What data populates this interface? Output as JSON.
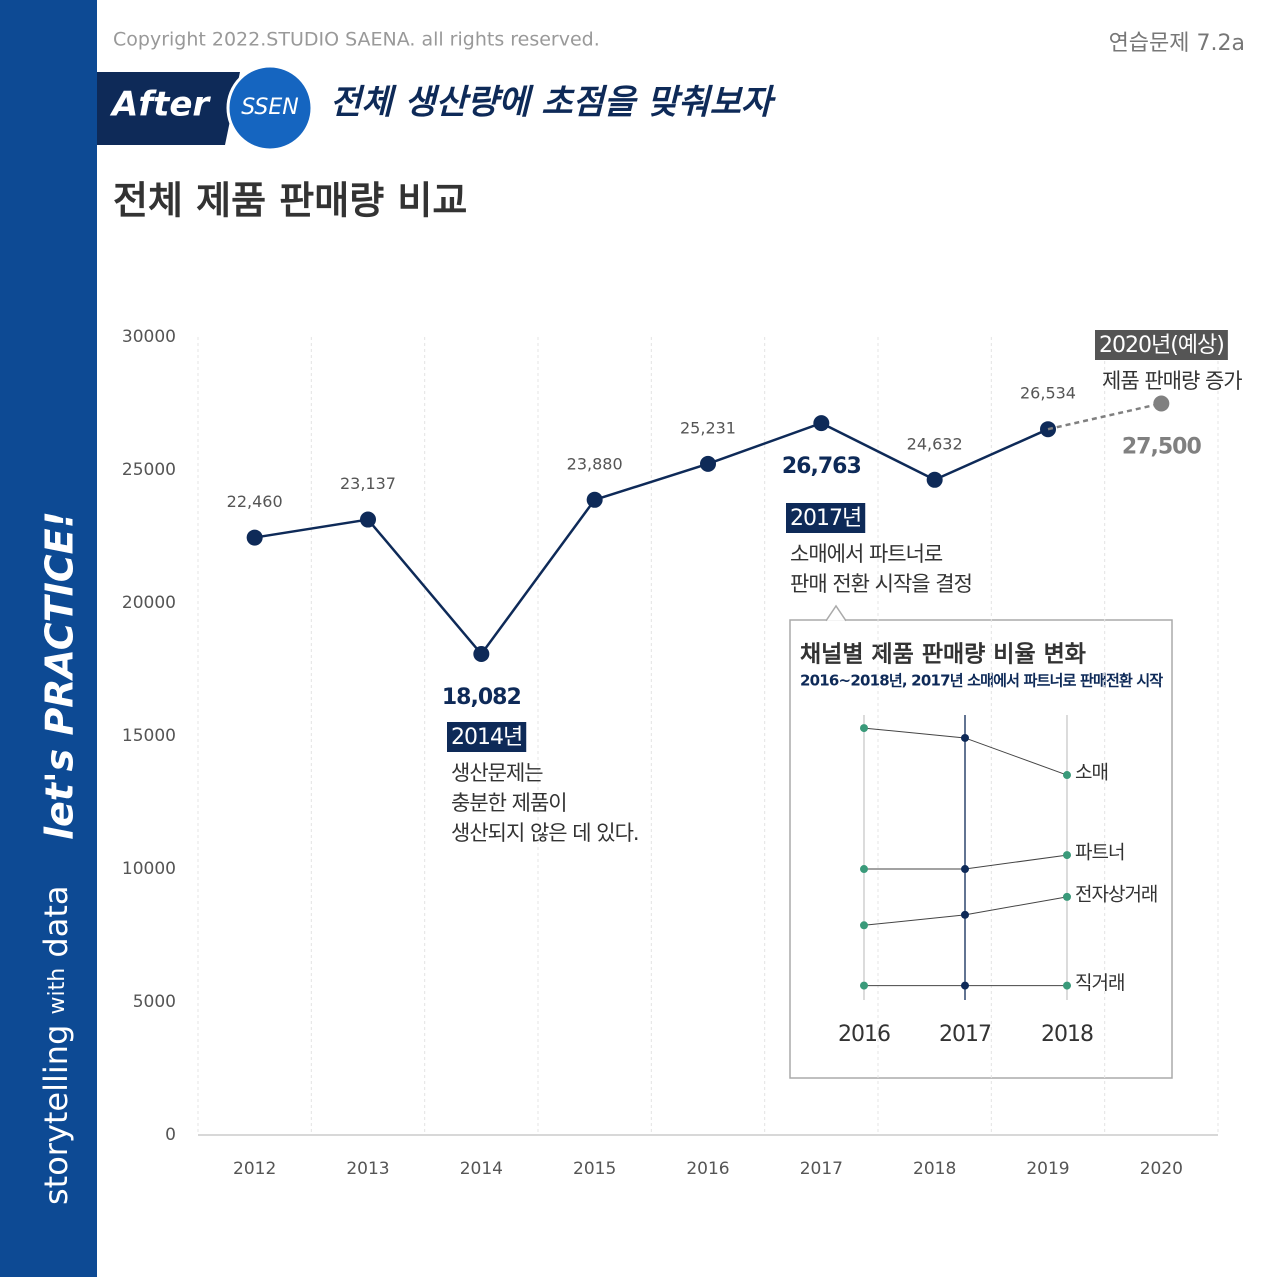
{
  "header": {
    "copyright": "Copyright 2022.STUDIO SAENA. all rights reserved.",
    "exercise": "연습문제 7.2a",
    "badge_left": "After",
    "badge_circle": "SSEN",
    "headline": "전체 생산량에 초점을 맞춰보자"
  },
  "sidebar": {
    "brand": [
      "storytelling",
      "with",
      "data"
    ],
    "slogan": "let's PRACTICE!"
  },
  "chart_data": [
    {
      "type": "line",
      "title": "전체 제품 판매량 비교",
      "categories": [
        "2012",
        "2013",
        "2014",
        "2015",
        "2016",
        "2017",
        "2018",
        "2019",
        "2020"
      ],
      "series": [
        {
          "name": null,
          "color": "#0e2a58",
          "values": [
            22460,
            23137,
            18082,
            23880,
            25231,
            26763,
            24632,
            26534,
            null
          ],
          "value_labels": [
            "22,460",
            "23,137",
            "18,082",
            "23,880",
            "25,231",
            "26,763",
            "24,632",
            "26,534",
            null
          ],
          "highlight": [
            2,
            5
          ]
        },
        {
          "name": null,
          "color": "#808080",
          "dashed": true,
          "values": [
            null,
            null,
            null,
            null,
            null,
            null,
            null,
            null,
            27500
          ],
          "value_labels": [
            null,
            null,
            null,
            null,
            null,
            null,
            null,
            null,
            "27,500"
          ],
          "highlight": [
            8
          ]
        }
      ],
      "ylim": [
        0,
        30000
      ],
      "yticks": [
        0,
        5000,
        10000,
        15000,
        20000,
        25000,
        30000
      ],
      "grid": "vertical",
      "annotations": [
        {
          "title": "2014년",
          "text": [
            "생산문제는",
            "충분한 제품이",
            "생산되지 않은 데 있다."
          ],
          "color": "#0e2a58"
        },
        {
          "title": "2017년",
          "text": [
            "소매에서 파트너로",
            "판매 전환 시작을 결정"
          ],
          "color": "#0e2a58"
        },
        {
          "title": "2020년(예상)",
          "text": [
            "제품 판매량 증가"
          ],
          "color": "#555555"
        }
      ]
    },
    {
      "type": "slope",
      "title": "채널별 제품 판매량 비율 변화",
      "subtitle": "2016~2018년, 2017년 소매에서 파트너로 판매전환 시작",
      "categories": [
        "2016",
        "2017",
        "2018"
      ],
      "series": [
        {
          "name": "소매",
          "values": [
            52.4,
            50.7,
            44.3
          ]
        },
        {
          "name": "파트너",
          "values": [
            28.1,
            28.1,
            30.5
          ]
        },
        {
          "name": "전자상거래",
          "values": [
            18.4,
            20.2,
            23.3
          ]
        },
        {
          "name": "직거래",
          "values": [
            8,
            8,
            8
          ]
        }
      ],
      "ylim": [
        0,
        55
      ],
      "point_colors": [
        "#3a9a7a",
        "#0e2a58",
        "#3a9a7a"
      ],
      "axis_colors": [
        "#c8c8c8",
        "#0e2a58",
        "#c8c8c8"
      ],
      "line_color": "#444444"
    }
  ]
}
